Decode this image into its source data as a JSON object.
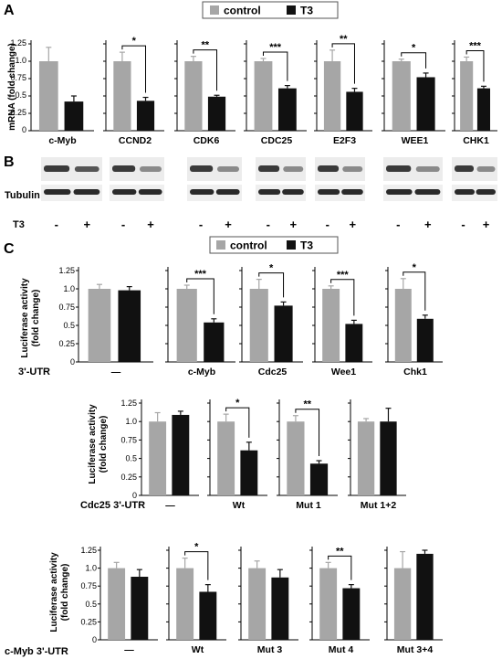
{
  "panel_a": {
    "letter": "A",
    "legend": [
      {
        "label": "control",
        "color": "#a6a6a6"
      },
      {
        "label": "T3",
        "color": "#111111"
      }
    ],
    "ylabel": "mRNA (fold change)",
    "yticks": [
      "1.25",
      "1.0",
      "0.75",
      "0.5",
      "0.25",
      "0"
    ]
  },
  "panel_b": {
    "letter": "B",
    "row_label_tubulin": "Tubulin",
    "row_label_t3": "T3",
    "minus": "-",
    "plus": "+"
  },
  "panel_c": {
    "letter": "C",
    "legend": [
      {
        "label": "control",
        "color": "#a6a6a6"
      },
      {
        "label": "T3",
        "color": "#111111"
      }
    ],
    "ylabel_line1": "Luciferase activity",
    "ylabel_line2": "(fold change)",
    "yticks": [
      "1.25",
      "1.0",
      "0.75",
      "0.5",
      "0.25",
      "0"
    ],
    "row_labels": [
      "3'-UTR",
      "Cdc25 3'-UTR",
      "c-Myb 3'-UTR"
    ]
  },
  "chart_data": [
    {
      "type": "bar",
      "panel": "A",
      "ylabel": "mRNA (fold change)",
      "ylim": [
        0,
        1.25
      ],
      "categories": [
        "c-Myb",
        "CCND2",
        "CDK6",
        "CDC25",
        "E2F3",
        "WEE1",
        "CHK1"
      ],
      "series": [
        {
          "name": "control",
          "values": [
            1.0,
            1.0,
            1.0,
            1.0,
            1.0,
            1.0,
            1.0
          ],
          "errors": [
            0.2,
            0.13,
            0.07,
            0.04,
            0.16,
            0.03,
            0.06
          ]
        },
        {
          "name": "T3",
          "values": [
            0.42,
            0.43,
            0.49,
            0.61,
            0.56,
            0.77,
            0.61
          ],
          "errors": [
            0.08,
            0.05,
            0.02,
            0.04,
            0.05,
            0.06,
            0.03
          ]
        }
      ],
      "significance": [
        "",
        "*",
        "**",
        "***",
        "**",
        "*",
        "***"
      ]
    },
    {
      "type": "bar",
      "panel": "C-row1",
      "ylabel": "Luciferase activity (fold change)",
      "ylim": [
        0,
        1.25
      ],
      "categories": [
        "—",
        "c-Myb",
        "Cdc25",
        "Wee1",
        "Chk1"
      ],
      "series": [
        {
          "name": "control",
          "values": [
            1.0,
            1.0,
            1.0,
            1.0,
            1.0
          ],
          "errors": [
            0.06,
            0.05,
            0.13,
            0.04,
            0.14
          ]
        },
        {
          "name": "T3",
          "values": [
            0.98,
            0.54,
            0.77,
            0.52,
            0.59
          ],
          "errors": [
            0.05,
            0.05,
            0.05,
            0.05,
            0.05
          ]
        }
      ],
      "significance": [
        "",
        "***",
        "*",
        "***",
        "*"
      ]
    },
    {
      "type": "bar",
      "panel": "C-row2",
      "ylabel": "Luciferase activity (fold change)",
      "ylim": [
        0,
        1.25
      ],
      "categories": [
        "—",
        "Wt",
        "Mut 1",
        "Mut 1+2"
      ],
      "series": [
        {
          "name": "control",
          "values": [
            1.0,
            1.0,
            1.0,
            1.0
          ],
          "errors": [
            0.12,
            0.1,
            0.08,
            0.04
          ]
        },
        {
          "name": "T3",
          "values": [
            1.09,
            0.61,
            0.43,
            1.0
          ],
          "errors": [
            0.05,
            0.11,
            0.04,
            0.18
          ]
        }
      ],
      "significance": [
        "",
        "*",
        "**",
        ""
      ]
    },
    {
      "type": "bar",
      "panel": "C-row3",
      "ylabel": "Luciferase activity (fold change)",
      "ylim": [
        0,
        1.25
      ],
      "categories": [
        "—",
        "Wt",
        "Mut 3",
        "Mut 4",
        "Mut 3+4"
      ],
      "series": [
        {
          "name": "control",
          "values": [
            1.0,
            1.0,
            1.0,
            1.0,
            1.0
          ],
          "errors": [
            0.08,
            0.14,
            0.1,
            0.08,
            0.23
          ]
        },
        {
          "name": "T3",
          "values": [
            0.88,
            0.67,
            0.87,
            0.72,
            1.2
          ],
          "errors": [
            0.1,
            0.1,
            0.11,
            0.05,
            0.05
          ]
        }
      ],
      "significance": [
        "",
        "*",
        "",
        "**",
        ""
      ]
    }
  ]
}
